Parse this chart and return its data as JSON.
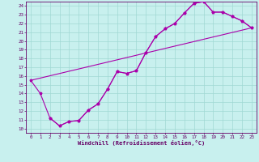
{
  "xlabel": "Windchill (Refroidissement éolien,°C)",
  "bg_color": "#c8f0ee",
  "grid_color": "#a0d8d4",
  "line_color": "#aa00aa",
  "spine_color": "#660066",
  "xlim": [
    -0.5,
    23.5
  ],
  "ylim": [
    9.5,
    24.5
  ],
  "yticks": [
    10,
    11,
    12,
    13,
    14,
    15,
    16,
    17,
    18,
    19,
    20,
    21,
    22,
    23,
    24
  ],
  "xticks": [
    0,
    1,
    2,
    3,
    4,
    5,
    6,
    7,
    8,
    9,
    10,
    11,
    12,
    13,
    14,
    15,
    16,
    17,
    18,
    19,
    20,
    21,
    22,
    23
  ],
  "line1_x": [
    0,
    1,
    2,
    3,
    4,
    5,
    6,
    7,
    8,
    9,
    10,
    11,
    12,
    13,
    14,
    15,
    16,
    17,
    18,
    19,
    20,
    21,
    22,
    23
  ],
  "line1_y": [
    15.5,
    14.0,
    11.2,
    10.3,
    10.8,
    10.9,
    12.1,
    12.8,
    14.5,
    16.5,
    16.3,
    16.6,
    18.7,
    20.5,
    21.4,
    22.0,
    23.2,
    24.3,
    24.5,
    23.3,
    23.3,
    22.8,
    22.3,
    21.5
  ],
  "line2_x": [
    2,
    3,
    4,
    5,
    6,
    7,
    8,
    9,
    10,
    11,
    12,
    13,
    14,
    15,
    16,
    17,
    18,
    19,
    20,
    21,
    22,
    23
  ],
  "line2_y": [
    11.2,
    10.3,
    10.8,
    10.9,
    12.1,
    12.8,
    14.5,
    16.5,
    16.3,
    16.6,
    18.7,
    20.5,
    21.4,
    22.0,
    23.2,
    24.3,
    24.5,
    23.3,
    23.3,
    22.8,
    22.3,
    21.5
  ],
  "line3_x": [
    0,
    23
  ],
  "line3_y": [
    15.5,
    21.5
  ],
  "marker": "*",
  "marker_size": 2.5,
  "linewidth": 0.8,
  "tick_fontsize": 4.2,
  "xlabel_fontsize": 5.0
}
